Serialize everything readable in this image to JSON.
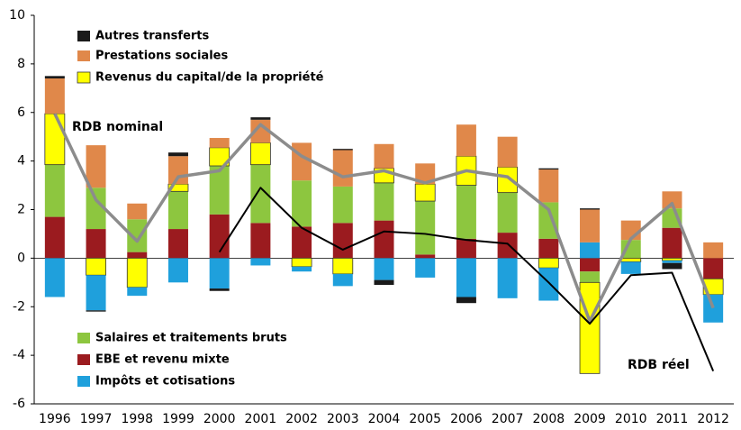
{
  "chart_data": {
    "type": "bar",
    "categories": [
      "1996",
      "1997",
      "1998",
      "1999",
      "2000",
      "2001",
      "2002",
      "2003",
      "2004",
      "2005",
      "2006",
      "2007",
      "2008",
      "2009",
      "2010",
      "2011",
      "2012"
    ],
    "ylim": [
      -6,
      10
    ],
    "yticks": [
      -6,
      -4,
      -2,
      0,
      2,
      4,
      6,
      8,
      10
    ],
    "grid": false,
    "stacked": true,
    "series": [
      {
        "name": "EBE et revenu mixte",
        "color": "#9b1b1f",
        "values": [
          1.7,
          1.2,
          0.25,
          1.2,
          1.8,
          1.45,
          1.3,
          1.45,
          1.55,
          0.15,
          0.8,
          1.05,
          0.8,
          -0.55,
          0,
          1.25,
          -0.85
        ]
      },
      {
        "name": "Salaires et traitements bruts",
        "color": "#8dc63f",
        "values": [
          2.15,
          1.7,
          1.35,
          1.55,
          2.0,
          2.4,
          1.9,
          1.5,
          1.55,
          2.2,
          2.2,
          1.65,
          1.5,
          -0.45,
          0.75,
          0.8,
          0
        ]
      },
      {
        "name": "Revenus du capital/de la propriété",
        "color": "#ffff00",
        "values": [
          2.1,
          -0.7,
          -1.2,
          0.3,
          0.75,
          0.9,
          -0.35,
          -0.65,
          0.6,
          0.7,
          1.2,
          1.05,
          -0.4,
          -3.75,
          -0.15,
          -0.1,
          -0.65
        ]
      },
      {
        "name": "Impôts et cotisations",
        "color": "#1fa0dc",
        "values": [
          -1.6,
          -1.45,
          -0.35,
          -1.0,
          -1.25,
          -0.3,
          -0.2,
          -0.5,
          -0.9,
          -0.8,
          -1.6,
          -1.65,
          -1.35,
          0.65,
          -0.5,
          -0.1,
          -1.15
        ]
      },
      {
        "name": "Prestations sociales",
        "color": "#e0884a",
        "values": [
          1.45,
          1.75,
          0.65,
          1.15,
          0.4,
          0.95,
          1.55,
          1.5,
          1.0,
          0.85,
          1.3,
          1.25,
          1.35,
          1.35,
          0.8,
          0.7,
          0.65
        ]
      },
      {
        "name": "Autres transferts",
        "color": "#1a1a1a",
        "values": [
          0.1,
          -0.05,
          0,
          0.15,
          -0.1,
          0.1,
          0,
          0.05,
          -0.2,
          0,
          -0.25,
          0,
          0.05,
          0.05,
          0,
          -0.25,
          0
        ]
      }
    ],
    "lines": [
      {
        "name": "RDB nominal",
        "color": "#8c8c8c",
        "values": [
          5.95,
          2.4,
          0.7,
          3.35,
          3.6,
          5.5,
          4.2,
          3.35,
          3.6,
          3.1,
          3.6,
          3.35,
          2.0,
          -2.6,
          0.8,
          2.25,
          -2.05
        ]
      },
      {
        "name": "RDB réel",
        "color": "#000000",
        "values": [
          null,
          null,
          null,
          null,
          0.25,
          2.9,
          1.25,
          0.35,
          1.1,
          1.0,
          0.75,
          0.6,
          -1.0,
          -2.7,
          -0.7,
          -0.6,
          -4.65
        ]
      }
    ]
  }
}
